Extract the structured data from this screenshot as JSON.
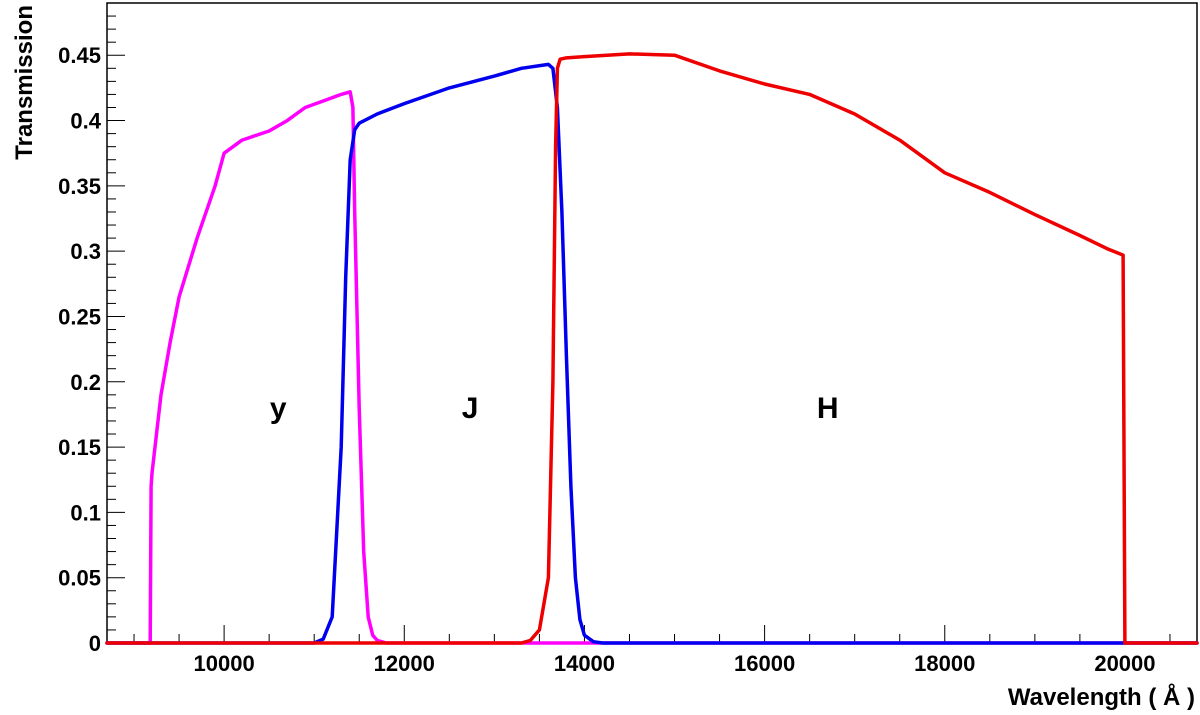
{
  "chart_data": {
    "type": "line",
    "title": "",
    "xlabel": "Wavelength ( Å )",
    "ylabel": "Transmission",
    "xlim": [
      8700,
      20800
    ],
    "ylim": [
      0,
      0.49
    ],
    "grid": false,
    "legend": "none",
    "x_ticks": [
      "10000",
      "12000",
      "14000",
      "16000",
      "18000",
      "20000"
    ],
    "y_ticks": [
      "0",
      "0.05",
      "0.1",
      "0.15",
      "0.2",
      "0.25",
      "0.3",
      "0.35",
      "0.4",
      "0.45"
    ],
    "annotations": [
      {
        "text": "y",
        "x": 10600,
        "y": 0.18
      },
      {
        "text": "J",
        "x": 12730,
        "y": 0.18
      },
      {
        "text": "H",
        "x": 16700,
        "y": 0.18
      }
    ],
    "series": [
      {
        "color": "#ff00ff",
        "x": [
          8700,
          9180,
          9190,
          9200,
          9300,
          9400,
          9500,
          9700,
          9900,
          10000,
          10200,
          10500,
          10700,
          10900,
          11100,
          11300,
          11400,
          11430,
          11450,
          11500,
          11550,
          11600,
          11650,
          11700,
          11800,
          12000,
          14000,
          20800
        ],
        "values": [
          0,
          0,
          0.12,
          0.13,
          0.19,
          0.23,
          0.265,
          0.31,
          0.35,
          0.375,
          0.385,
          0.392,
          0.4,
          0.41,
          0.415,
          0.42,
          0.422,
          0.41,
          0.33,
          0.18,
          0.07,
          0.02,
          0.006,
          0.002,
          0,
          0,
          0,
          0
        ]
      },
      {
        "color": "#0000ee",
        "x": [
          8700,
          11000,
          11100,
          11200,
          11300,
          11350,
          11400,
          11450,
          11500,
          11700,
          12000,
          12500,
          13000,
          13300,
          13600,
          13650,
          13700,
          13750,
          13800,
          13850,
          13900,
          13950,
          14000,
          14100,
          14200,
          20800
        ],
        "values": [
          0,
          0,
          0.003,
          0.02,
          0.15,
          0.28,
          0.37,
          0.393,
          0.398,
          0.405,
          0.413,
          0.425,
          0.434,
          0.44,
          0.443,
          0.44,
          0.41,
          0.33,
          0.22,
          0.12,
          0.05,
          0.018,
          0.006,
          0.001,
          0,
          0
        ]
      },
      {
        "color": "#ee0000",
        "x": [
          8700,
          13300,
          13400,
          13500,
          13600,
          13650,
          13680,
          13700,
          13730,
          13800,
          14000,
          14500,
          15000,
          15500,
          16000,
          16500,
          17000,
          17500,
          18000,
          18500,
          19000,
          19500,
          19800,
          19980,
          20000,
          20800
        ],
        "values": [
          0,
          0,
          0.002,
          0.01,
          0.05,
          0.2,
          0.38,
          0.44,
          0.447,
          0.448,
          0.449,
          0.451,
          0.45,
          0.438,
          0.428,
          0.42,
          0.405,
          0.385,
          0.36,
          0.345,
          0.328,
          0.312,
          0.302,
          0.297,
          0,
          0
        ]
      }
    ]
  }
}
